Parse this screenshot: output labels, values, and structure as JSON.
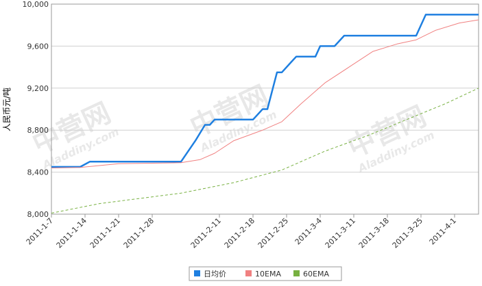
{
  "chart_data": {
    "type": "line",
    "y_label": "人民币元/吨",
    "watermark": {
      "title": "中营网",
      "url": "Aladdiny.com"
    },
    "xlim": [
      "2011-1-7",
      "2011-4-6"
    ],
    "xticks": [
      "2011-1-7",
      "2011-1-14",
      "2011-1-21",
      "2011-1-28",
      "2011-2-11",
      "2011-2-18",
      "2011-2-25",
      "2011-3-4",
      "2011-3-11",
      "2011-3-18",
      "2011-3-25",
      "2011-4-1"
    ],
    "ylim": [
      8000,
      10000
    ],
    "yticks": [
      {
        "value": 8000,
        "label": "8,000"
      },
      {
        "value": 8400,
        "label": "8,400"
      },
      {
        "value": 8800,
        "label": "8,800"
      },
      {
        "value": 9200,
        "label": "9,200"
      },
      {
        "value": 9600,
        "label": "9,600"
      },
      {
        "value": 10000,
        "label": "10,000"
      }
    ],
    "grid": true,
    "legend": "bottom",
    "series": [
      {
        "name": "日均价",
        "color": "#1e7fe0",
        "x": [
          "2011-1-7",
          "2011-1-13",
          "2011-1-15",
          "2011-2-3",
          "2011-2-6",
          "2011-2-8",
          "2011-2-9",
          "2011-2-10",
          "2011-2-18",
          "2011-2-20",
          "2011-2-21",
          "2011-2-23",
          "2011-2-24",
          "2011-2-26",
          "2011-2-27",
          "2011-3-3",
          "2011-3-4",
          "2011-3-7",
          "2011-3-9",
          "2011-3-24",
          "2011-3-26",
          "2011-4-6"
        ],
        "values": [
          8450,
          8450,
          8500,
          8500,
          8700,
          8850,
          8850,
          8900,
          8900,
          9000,
          9000,
          9350,
          9350,
          9450,
          9500,
          9500,
          9600,
          9600,
          9700,
          9700,
          9900,
          9900
        ]
      },
      {
        "name": "10EMA",
        "color": "#f08080",
        "x": [
          "2011-1-7",
          "2011-1-13",
          "2011-1-21",
          "2011-2-3",
          "2011-2-7",
          "2011-2-10",
          "2011-2-14",
          "2011-2-20",
          "2011-2-24",
          "2011-2-28",
          "2011-3-5",
          "2011-3-10",
          "2011-3-15",
          "2011-3-20",
          "2011-3-24",
          "2011-3-28",
          "2011-4-2",
          "2011-4-6"
        ],
        "values": [
          8440,
          8445,
          8480,
          8490,
          8520,
          8580,
          8700,
          8800,
          8880,
          9050,
          9250,
          9400,
          9550,
          9620,
          9660,
          9750,
          9820,
          9850
        ]
      },
      {
        "name": "60EMA",
        "color": "#77b040",
        "x": [
          "2011-1-7",
          "2011-1-17",
          "2011-2-3",
          "2011-2-14",
          "2011-2-24",
          "2011-3-5",
          "2011-3-14",
          "2011-3-22",
          "2011-3-30",
          "2011-4-6"
        ],
        "values": [
          8010,
          8100,
          8200,
          8300,
          8420,
          8600,
          8750,
          8900,
          9050,
          9200
        ]
      }
    ]
  }
}
